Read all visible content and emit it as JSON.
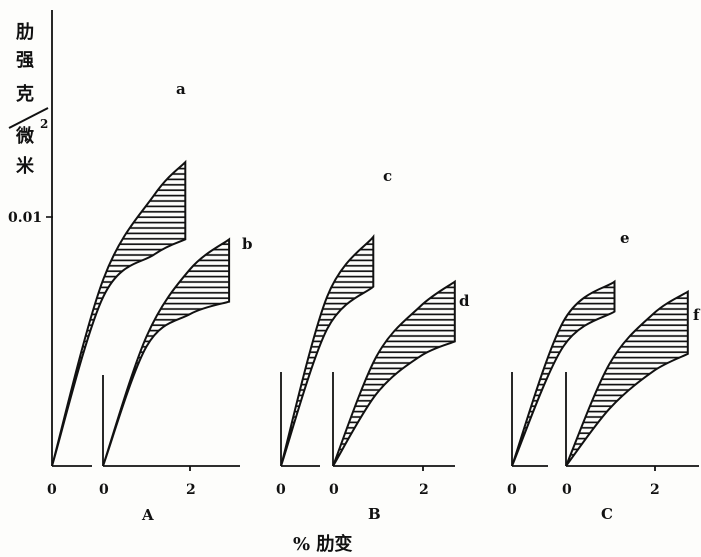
{
  "chart_data": {
    "type": "area",
    "y_axis": {
      "title_chars": [
        "肋",
        "强",
        "克",
        "微",
        "米"
      ],
      "superscript": "2",
      "tick_label": "0.01"
    },
    "x_axis": {
      "title": "% 肋变",
      "tick_labels": [
        "0",
        "2"
      ]
    },
    "groups": [
      {
        "label": "A",
        "curves": [
          {
            "name": "a",
            "strain_max": 1.3,
            "upper": [
              [
                0,
                0
              ],
              [
                0.5,
                0.0075
              ],
              [
                1.0,
                0.0109
              ],
              [
                1.3,
                0.0122
              ]
            ],
            "lower": [
              [
                0,
                0
              ],
              [
                0.5,
                0.0068
              ],
              [
                1.0,
                0.0085
              ],
              [
                1.3,
                0.0091
              ]
            ]
          },
          {
            "name": "b",
            "strain_max": 2.9,
            "upper": [
              [
                0,
                0
              ],
              [
                1.0,
                0.0052
              ],
              [
                2.0,
                0.0079
              ],
              [
                2.9,
                0.0091
              ]
            ],
            "lower": [
              [
                0,
                0
              ],
              [
                1.0,
                0.0048
              ],
              [
                2.0,
                0.0061
              ],
              [
                2.9,
                0.0066
              ]
            ]
          }
        ]
      },
      {
        "label": "B",
        "curves": [
          {
            "name": "c",
            "strain_max": 0.9,
            "upper": [
              [
                0,
                0
              ],
              [
                0.45,
                0.0068
              ],
              [
                0.9,
                0.0092
              ]
            ],
            "lower": [
              [
                0,
                0
              ],
              [
                0.45,
                0.0055
              ],
              [
                0.9,
                0.0072
              ]
            ]
          },
          {
            "name": "d",
            "strain_max": 2.8,
            "upper": [
              [
                0,
                0
              ],
              [
                1.0,
                0.0044
              ],
              [
                2.0,
                0.0064
              ],
              [
                2.8,
                0.0074
              ]
            ],
            "lower": [
              [
                0,
                0
              ],
              [
                1.0,
                0.0029
              ],
              [
                2.0,
                0.0044
              ],
              [
                2.8,
                0.005
              ]
            ]
          }
        ]
      },
      {
        "label": "C",
        "curves": [
          {
            "name": "e",
            "strain_max": 1.0,
            "upper": [
              [
                0,
                0
              ],
              [
                0.5,
                0.0058
              ],
              [
                1.0,
                0.0074
              ]
            ],
            "lower": [
              [
                0,
                0
              ],
              [
                0.5,
                0.0048
              ],
              [
                1.0,
                0.0062
              ]
            ]
          },
          {
            "name": "f",
            "strain_max": 2.8,
            "upper": [
              [
                0,
                0
              ],
              [
                1.0,
                0.0041
              ],
              [
                2.0,
                0.0061
              ],
              [
                2.8,
                0.007
              ]
            ],
            "lower": [
              [
                0,
                0
              ],
              [
                1.0,
                0.0023
              ],
              [
                2.0,
                0.0038
              ],
              [
                2.8,
                0.0045
              ]
            ]
          }
        ]
      }
    ],
    "style": {
      "hatch": "horizontal",
      "grid": false,
      "legend": "none"
    }
  }
}
